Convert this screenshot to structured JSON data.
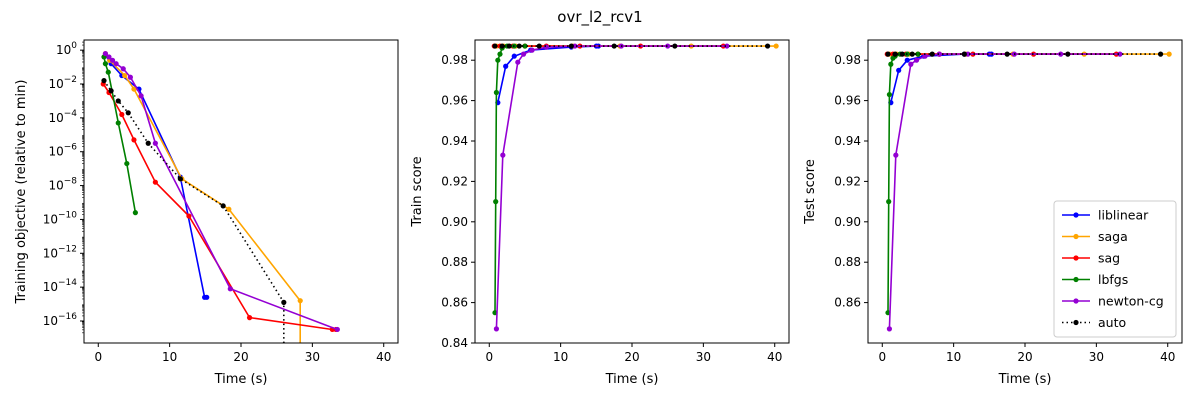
{
  "suptitle": "ovr_l2_rcv1",
  "chart_data": [
    {
      "type": "line",
      "title": "",
      "xlabel": "Time (s)",
      "ylabel": "Training objective (relative to min)",
      "yscale": "log",
      "xlim": [
        -2,
        42
      ],
      "ylim_log10": [
        -17.3,
        0.6
      ],
      "x_ticks": [
        0,
        10,
        20,
        30,
        40
      ],
      "x_tick_labels": [
        "0",
        "10",
        "20",
        "30",
        "40"
      ],
      "y_ticks_log10": [
        0,
        -2,
        -4,
        -6,
        -8,
        -10,
        -12,
        -14,
        -16
      ],
      "y_tick_labels": [
        "10^0",
        "10^-2",
        "10^-4",
        "10^-6",
        "10^-8",
        "10^-10",
        "10^-12",
        "10^-14",
        "10^-16"
      ],
      "series": [
        {
          "name": "liblinear",
          "color": "#0000ff",
          "style": "solid",
          "x": [
            1.0,
            1.8,
            3.3,
            5.7,
            11.5,
            14.9,
            15.2
          ],
          "log10_y": [
            -0.3,
            -0.8,
            -1.5,
            -2.3,
            -7.5,
            -14.6,
            -14.6
          ]
        },
        {
          "name": "saga",
          "color": "#ffa500",
          "style": "solid",
          "x": [
            1.0,
            1.6,
            3.7,
            5.0,
            11.7,
            18.3,
            28.3,
            28.3
          ],
          "log10_y": [
            -0.2,
            -0.6,
            -1.5,
            -2.3,
            -7.6,
            -9.4,
            -14.8,
            -17.4
          ]
        },
        {
          "name": "sag",
          "color": "#ff0000",
          "style": "solid",
          "x": [
            0.7,
            1.5,
            3.3,
            5.0,
            8.0,
            12.7,
            21.2,
            32.8,
            33.3
          ],
          "log10_y": [
            -2.0,
            -2.5,
            -3.8,
            -5.3,
            -7.8,
            -9.8,
            -15.8,
            -16.5,
            -16.5
          ]
        },
        {
          "name": "lbfgs",
          "color": "#008000",
          "style": "solid",
          "x": [
            0.8,
            1.0,
            1.4,
            2.8,
            4.0,
            5.2
          ],
          "log10_y": [
            -0.4,
            -0.8,
            -1.3,
            -4.3,
            -6.7,
            -9.6
          ]
        },
        {
          "name": "newton-cg",
          "color": "#9400d3",
          "style": "solid",
          "x": [
            1.0,
            1.5,
            2.0,
            2.5,
            3.5,
            4.5,
            6.0,
            8.0,
            18.5,
            33.5
          ],
          "log10_y": [
            -0.2,
            -0.4,
            -0.6,
            -0.8,
            -1.1,
            -1.6,
            -2.7,
            -5.5,
            -14.1,
            -16.5
          ]
        },
        {
          "name": "auto",
          "color": "#000000",
          "style": "dotted",
          "x": [
            0.8,
            1.8,
            2.8,
            4.2,
            7.0,
            11.5,
            17.5,
            26.0,
            26.0
          ],
          "log10_y": [
            -1.8,
            -2.4,
            -3.0,
            -3.7,
            -5.5,
            -7.6,
            -9.2,
            -14.9,
            -17.4
          ]
        }
      ]
    },
    {
      "type": "line",
      "title": "",
      "xlabel": "Time (s)",
      "ylabel": "Train score",
      "xlim": [
        -2,
        42
      ],
      "ylim": [
        0.84,
        0.99
      ],
      "x_ticks": [
        0,
        10,
        20,
        30,
        40
      ],
      "x_tick_labels": [
        "0",
        "10",
        "20",
        "30",
        "40"
      ],
      "y_ticks": [
        0.84,
        0.86,
        0.88,
        0.9,
        0.92,
        0.94,
        0.96,
        0.98
      ],
      "y_tick_labels": [
        "0.84",
        "0.86",
        "0.88",
        "0.90",
        "0.92",
        "0.94",
        "0.96",
        "0.98"
      ],
      "series": [
        {
          "name": "liblinear",
          "color": "#0000ff",
          "style": "solid",
          "x": [
            1.2,
            2.3,
            3.5,
            5.8,
            11.5,
            15.0,
            15.3
          ],
          "y": [
            0.959,
            0.977,
            0.982,
            0.985,
            0.9865,
            0.987,
            0.987
          ]
        },
        {
          "name": "saga",
          "color": "#ffa500",
          "style": "solid",
          "x": [
            1.0,
            2.0,
            3.7,
            5.0,
            11.7,
            18.3,
            28.3,
            40.2
          ],
          "y": [
            0.987,
            0.987,
            0.987,
            0.987,
            0.987,
            0.987,
            0.987,
            0.987
          ]
        },
        {
          "name": "sag",
          "color": "#ff0000",
          "style": "solid",
          "x": [
            0.7,
            1.5,
            3.3,
            5.0,
            8.0,
            12.7,
            21.2,
            32.8
          ],
          "y": [
            0.987,
            0.987,
            0.987,
            0.987,
            0.987,
            0.987,
            0.987,
            0.987
          ]
        },
        {
          "name": "lbfgs",
          "color": "#008000",
          "style": "solid",
          "x": [
            0.8,
            0.9,
            1.0,
            1.2,
            1.5,
            1.8,
            2.5,
            3.5,
            5.0
          ],
          "y": [
            0.855,
            0.91,
            0.964,
            0.98,
            0.983,
            0.986,
            0.987,
            0.987,
            0.987
          ]
        },
        {
          "name": "newton-cg",
          "color": "#9400d3",
          "style": "solid",
          "x": [
            1.0,
            1.9,
            4.0,
            4.8,
            6.0,
            8.0,
            12.0,
            18.5,
            25.0,
            33.3
          ],
          "y": [
            0.847,
            0.933,
            0.979,
            0.983,
            0.985,
            0.9865,
            0.987,
            0.987,
            0.987,
            0.987
          ]
        },
        {
          "name": "auto",
          "color": "#000000",
          "style": "dotted",
          "x": [
            0.8,
            1.8,
            2.8,
            4.2,
            7.0,
            11.5,
            17.5,
            26.0,
            39.0
          ],
          "y": [
            0.987,
            0.987,
            0.987,
            0.987,
            0.987,
            0.987,
            0.987,
            0.987,
            0.987
          ]
        }
      ]
    },
    {
      "type": "line",
      "title": "",
      "xlabel": "Time (s)",
      "ylabel": "Test score",
      "xlim": [
        -2,
        42
      ],
      "ylim": [
        0.84,
        0.99
      ],
      "x_ticks": [
        0,
        10,
        20,
        30,
        40
      ],
      "x_tick_labels": [
        "0",
        "10",
        "20",
        "30",
        "40"
      ],
      "y_ticks": [
        0.86,
        0.88,
        0.9,
        0.92,
        0.94,
        0.96,
        0.98
      ],
      "y_tick_labels": [
        "0.86",
        "0.88",
        "0.90",
        "0.92",
        "0.94",
        "0.96",
        "0.98"
      ],
      "legend_position": "lower-right",
      "series": [
        {
          "name": "liblinear",
          "color": "#0000ff",
          "style": "solid",
          "x": [
            1.2,
            2.3,
            3.5,
            5.8,
            11.5,
            15.0,
            15.3
          ],
          "y": [
            0.959,
            0.975,
            0.98,
            0.982,
            0.983,
            0.983,
            0.983
          ]
        },
        {
          "name": "saga",
          "color": "#ffa500",
          "style": "solid",
          "x": [
            1.0,
            2.0,
            3.7,
            5.0,
            11.7,
            18.3,
            28.3,
            40.2
          ],
          "y": [
            0.983,
            0.983,
            0.983,
            0.983,
            0.983,
            0.983,
            0.983,
            0.983
          ]
        },
        {
          "name": "sag",
          "color": "#ff0000",
          "style": "solid",
          "x": [
            0.7,
            1.5,
            3.3,
            5.0,
            8.0,
            12.7,
            21.2,
            32.8
          ],
          "y": [
            0.983,
            0.983,
            0.983,
            0.983,
            0.983,
            0.983,
            0.983,
            0.983
          ]
        },
        {
          "name": "lbfgs",
          "color": "#008000",
          "style": "solid",
          "x": [
            0.8,
            0.9,
            1.0,
            1.2,
            1.5,
            1.8,
            2.5,
            3.5,
            5.0
          ],
          "y": [
            0.855,
            0.91,
            0.963,
            0.978,
            0.981,
            0.982,
            0.983,
            0.983,
            0.983
          ]
        },
        {
          "name": "newton-cg",
          "color": "#9400d3",
          "style": "solid",
          "x": [
            1.0,
            1.9,
            4.0,
            4.8,
            6.0,
            8.0,
            12.0,
            18.5,
            25.0,
            33.3
          ],
          "y": [
            0.847,
            0.933,
            0.978,
            0.98,
            0.982,
            0.983,
            0.983,
            0.983,
            0.983,
            0.983
          ]
        },
        {
          "name": "auto",
          "color": "#000000",
          "style": "dotted",
          "x": [
            0.8,
            1.8,
            2.8,
            4.2,
            7.0,
            11.5,
            17.5,
            26.0,
            39.0
          ],
          "y": [
            0.983,
            0.983,
            0.983,
            0.983,
            0.983,
            0.983,
            0.983,
            0.983,
            0.983
          ]
        }
      ]
    }
  ]
}
